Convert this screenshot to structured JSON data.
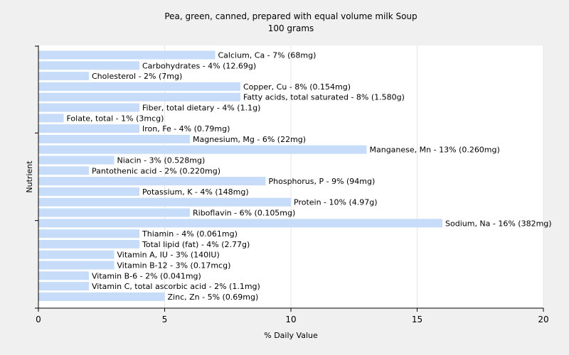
{
  "chart_data": {
    "type": "bar",
    "orientation": "horizontal",
    "title": "Pea, green, canned, prepared with equal volume milk Soup",
    "subtitle": "100 grams",
    "xlabel": "% Daily Value",
    "ylabel": "Nutrient",
    "xlim": [
      0,
      20
    ],
    "xticks": [
      0,
      5,
      10,
      15,
      20
    ],
    "grid": true,
    "bar_color": "#c6dcf8",
    "background_color": "#f0f0f0",
    "plot_background_color": "#ffffff",
    "categories": [
      "Calcium, Ca",
      "Carbohydrates",
      "Cholesterol",
      "Copper, Cu",
      "Fatty acids, total saturated",
      "Fiber, total dietary",
      "Folate, total",
      "Iron, Fe",
      "Magnesium, Mg",
      "Manganese, Mn",
      "Niacin",
      "Pantothenic acid",
      "Phosphorus, P",
      "Potassium, K",
      "Protein",
      "Riboflavin",
      "Sodium, Na",
      "Thiamin",
      "Total lipid (fat)",
      "Vitamin A, IU",
      "Vitamin B-12",
      "Vitamin B-6",
      "Vitamin C, total ascorbic acid",
      "Zinc, Zn"
    ],
    "values": [
      7,
      4,
      2,
      8,
      8,
      4,
      1,
      4,
      6,
      13,
      3,
      2,
      9,
      4,
      10,
      6,
      16,
      4,
      4,
      3,
      3,
      2,
      2,
      5
    ],
    "labels": [
      "Calcium, Ca - 7% (68mg)",
      "Carbohydrates - 4% (12.69g)",
      "Cholesterol - 2% (7mg)",
      "Copper, Cu - 8% (0.154mg)",
      "Fatty acids, total saturated - 8% (1.580g)",
      "Fiber, total dietary - 4% (1.1g)",
      "Folate, total - 1% (3mcg)",
      "Iron, Fe - 4% (0.79mg)",
      "Magnesium, Mg - 6% (22mg)",
      "Manganese, Mn - 13% (0.260mg)",
      "Niacin - 3% (0.528mg)",
      "Pantothenic acid - 2% (0.220mg)",
      "Phosphorus, P - 9% (94mg)",
      "Potassium, K - 4% (148mg)",
      "Protein - 10% (4.97g)",
      "Riboflavin - 6% (0.105mg)",
      "Sodium, Na - 16% (382mg)",
      "Thiamin - 4% (0.061mg)",
      "Total lipid (fat) - 4% (2.77g)",
      "Vitamin A, IU - 3% (140IU)",
      "Vitamin B-12 - 3% (0.17mcg)",
      "Vitamin B-6 - 2% (0.041mg)",
      "Vitamin C, total ascorbic acid - 2% (1.1mg)",
      "Zinc, Zn - 5% (0.69mg)"
    ]
  }
}
